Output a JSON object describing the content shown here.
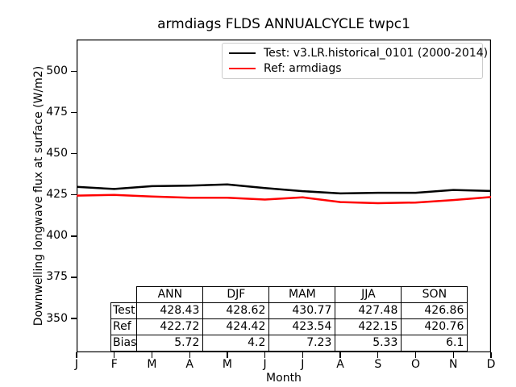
{
  "chart_data": {
    "type": "line",
    "title": "armdiags FLDS ANNUALCYCLE twpc1",
    "xlabel": "Month",
    "ylabel": "Downwelling longwave flux at surface (W/m2)",
    "x": [
      "J",
      "F",
      "M",
      "A",
      "M",
      "J",
      "J",
      "A",
      "S",
      "O",
      "N",
      "D"
    ],
    "yticks": [
      350,
      375,
      400,
      425,
      450,
      475,
      500
    ],
    "ylim": [
      329.5,
      519.3
    ],
    "grid": false,
    "legend_position": "upper right",
    "series": [
      {
        "name": "Test: v3.LR.historical_0101 (2000-2014)",
        "color": "#000000",
        "values": [
          429.9,
          428.6,
          430.3,
          430.6,
          431.4,
          429.2,
          427.3,
          425.9,
          426.3,
          426.3,
          428.0,
          427.4
        ]
      },
      {
        "name": "Ref: armdiags",
        "color": "#ff0000",
        "values": [
          424.6,
          425.0,
          424.0,
          423.3,
          423.3,
          422.2,
          423.5,
          420.7,
          420.0,
          420.4,
          421.9,
          423.7
        ]
      }
    ]
  },
  "table": {
    "columns": [
      "ANN",
      "DJF",
      "MAM",
      "JJA",
      "SON"
    ],
    "rows": [
      {
        "label": "Test",
        "values": [
          "428.43",
          "428.62",
          "430.77",
          "427.48",
          "426.86"
        ]
      },
      {
        "label": "Ref",
        "values": [
          "422.72",
          "424.42",
          "423.54",
          "422.15",
          "420.76"
        ]
      },
      {
        "label": "Bias",
        "values": [
          "5.72",
          "4.2",
          "7.23",
          "5.33",
          "6.1"
        ]
      }
    ]
  }
}
